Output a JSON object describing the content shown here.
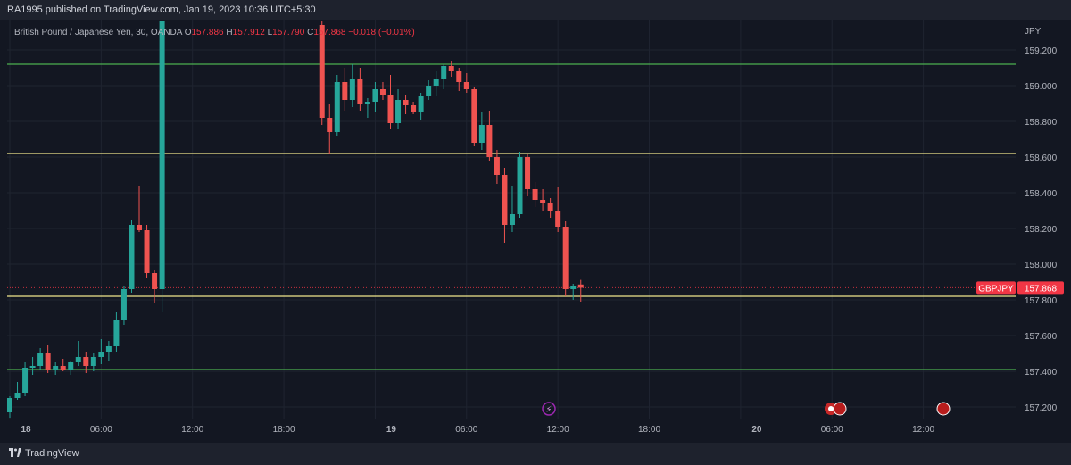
{
  "header": {
    "published": "RA1995 published on TradingView.com, Jan 19, 2023 10:36 UTC+5:30"
  },
  "legend": {
    "symbol": "British Pound / Japanese Yen, 30, OANDA",
    "o_label": "O",
    "o_value": "157.886",
    "h_label": "H",
    "h_value": "157.912",
    "l_label": "L",
    "l_value": "157.790",
    "c_label": "C",
    "c_value": "157.868",
    "change": "−0.018 (−0.01%)"
  },
  "axis": {
    "currency": "JPY",
    "price_ticks": [
      "159.200",
      "159.000",
      "158.800",
      "158.600",
      "158.400",
      "158.200",
      "158.000",
      "157.800",
      "157.600",
      "157.400",
      "157.200"
    ],
    "price_tick_values": [
      159.2,
      159.0,
      158.8,
      158.6,
      158.4,
      158.2,
      158.0,
      157.8,
      157.6,
      157.4,
      157.2
    ],
    "time_ticks": [
      "18",
      "06:00",
      "12:00",
      "18:00",
      "19",
      "06:00",
      "12:00",
      "18:00",
      "20",
      "06:00",
      "12:00"
    ],
    "time_tick_slots": [
      0,
      12,
      24,
      36,
      48,
      60,
      72,
      84,
      96,
      108,
      120
    ],
    "bold_ticks": [
      "18",
      "19",
      "20"
    ]
  },
  "badges": {
    "symbol_tag": "GBPJPY",
    "last_price": "157.868"
  },
  "footer": {
    "brand": "TradingView"
  },
  "colors": {
    "up": "#26a69a",
    "down": "#ef5350",
    "green_line": "#4caf50",
    "yellow_line": "#f0e68c",
    "background": "#131722",
    "badge_red": "#f23645"
  },
  "chart_data": {
    "type": "candlestick",
    "symbol": "GBPJPY",
    "timeframe": "30",
    "ylim": [
      157.13,
      159.37
    ],
    "horizontal_levels": [
      {
        "value": 159.12,
        "color": "green"
      },
      {
        "value": 158.62,
        "color": "yellow"
      },
      {
        "value": 157.82,
        "color": "yellow"
      },
      {
        "value": 157.41,
        "color": "green"
      }
    ],
    "last_price": 157.868,
    "candles": [
      {
        "slot": 0,
        "o": 157.17,
        "h": 157.26,
        "l": 157.14,
        "c": 157.25
      },
      {
        "slot": 1,
        "o": 157.25,
        "h": 157.34,
        "l": 157.24,
        "c": 157.28
      },
      {
        "slot": 2,
        "o": 157.28,
        "h": 157.45,
        "l": 157.26,
        "c": 157.42
      },
      {
        "slot": 3,
        "o": 157.42,
        "h": 157.48,
        "l": 157.38,
        "c": 157.43
      },
      {
        "slot": 4,
        "o": 157.43,
        "h": 157.53,
        "l": 157.41,
        "c": 157.5
      },
      {
        "slot": 5,
        "o": 157.5,
        "h": 157.55,
        "l": 157.39,
        "c": 157.41
      },
      {
        "slot": 6,
        "o": 157.41,
        "h": 157.45,
        "l": 157.38,
        "c": 157.43
      },
      {
        "slot": 7,
        "o": 157.43,
        "h": 157.47,
        "l": 157.4,
        "c": 157.41
      },
      {
        "slot": 8,
        "o": 157.41,
        "h": 157.46,
        "l": 157.38,
        "c": 157.45
      },
      {
        "slot": 9,
        "o": 157.45,
        "h": 157.57,
        "l": 157.43,
        "c": 157.48
      },
      {
        "slot": 10,
        "o": 157.48,
        "h": 157.51,
        "l": 157.39,
        "c": 157.43
      },
      {
        "slot": 11,
        "o": 157.43,
        "h": 157.5,
        "l": 157.4,
        "c": 157.48
      },
      {
        "slot": 12,
        "o": 157.48,
        "h": 157.58,
        "l": 157.44,
        "c": 157.51
      },
      {
        "slot": 13,
        "o": 157.51,
        "h": 157.57,
        "l": 157.46,
        "c": 157.54
      },
      {
        "slot": 14,
        "o": 157.54,
        "h": 157.73,
        "l": 157.51,
        "c": 157.69
      },
      {
        "slot": 15,
        "o": 157.69,
        "h": 157.88,
        "l": 157.66,
        "c": 157.86
      },
      {
        "slot": 16,
        "o": 157.86,
        "h": 158.25,
        "l": 157.84,
        "c": 158.22
      },
      {
        "slot": 17,
        "o": 158.22,
        "h": 158.44,
        "l": 158.18,
        "c": 158.19
      },
      {
        "slot": 18,
        "o": 158.19,
        "h": 158.22,
        "l": 157.92,
        "c": 157.95
      },
      {
        "slot": 19,
        "o": 157.95,
        "h": 157.97,
        "l": 157.78,
        "c": 157.86
      },
      {
        "slot": 20,
        "o": 157.86,
        "h": 159.36,
        "l": 157.73,
        "c": 159.36
      },
      {
        "slot": 41,
        "o": 159.34,
        "h": 159.36,
        "l": 158.78,
        "c": 158.82
      },
      {
        "slot": 42,
        "o": 158.82,
        "h": 158.9,
        "l": 158.62,
        "c": 158.74
      },
      {
        "slot": 43,
        "o": 158.74,
        "h": 159.06,
        "l": 158.72,
        "c": 159.02
      },
      {
        "slot": 44,
        "o": 159.02,
        "h": 159.1,
        "l": 158.86,
        "c": 158.92
      },
      {
        "slot": 45,
        "o": 158.92,
        "h": 159.12,
        "l": 158.88,
        "c": 159.04
      },
      {
        "slot": 46,
        "o": 159.04,
        "h": 159.1,
        "l": 158.86,
        "c": 158.9
      },
      {
        "slot": 47,
        "o": 158.9,
        "h": 158.93,
        "l": 158.82,
        "c": 158.91
      },
      {
        "slot": 48,
        "o": 158.91,
        "h": 159.02,
        "l": 158.85,
        "c": 158.98
      },
      {
        "slot": 49,
        "o": 158.98,
        "h": 159.02,
        "l": 158.92,
        "c": 158.95
      },
      {
        "slot": 50,
        "o": 158.95,
        "h": 159.06,
        "l": 158.76,
        "c": 158.79
      },
      {
        "slot": 51,
        "o": 158.79,
        "h": 158.98,
        "l": 158.76,
        "c": 158.92
      },
      {
        "slot": 52,
        "o": 158.92,
        "h": 158.95,
        "l": 158.84,
        "c": 158.89
      },
      {
        "slot": 53,
        "o": 158.89,
        "h": 158.91,
        "l": 158.84,
        "c": 158.85
      },
      {
        "slot": 54,
        "o": 158.85,
        "h": 158.96,
        "l": 158.81,
        "c": 158.94
      },
      {
        "slot": 55,
        "o": 158.94,
        "h": 159.03,
        "l": 158.92,
        "c": 159.0
      },
      {
        "slot": 56,
        "o": 159.0,
        "h": 159.08,
        "l": 158.94,
        "c": 159.04
      },
      {
        "slot": 57,
        "o": 159.04,
        "h": 159.12,
        "l": 158.98,
        "c": 159.11
      },
      {
        "slot": 58,
        "o": 159.11,
        "h": 159.14,
        "l": 159.05,
        "c": 159.08
      },
      {
        "slot": 59,
        "o": 159.08,
        "h": 159.1,
        "l": 158.97,
        "c": 159.02
      },
      {
        "slot": 60,
        "o": 159.02,
        "h": 159.07,
        "l": 158.96,
        "c": 158.98
      },
      {
        "slot": 61,
        "o": 158.98,
        "h": 158.99,
        "l": 158.66,
        "c": 158.68
      },
      {
        "slot": 62,
        "o": 158.68,
        "h": 158.85,
        "l": 158.64,
        "c": 158.78
      },
      {
        "slot": 63,
        "o": 158.78,
        "h": 158.86,
        "l": 158.58,
        "c": 158.6
      },
      {
        "slot": 64,
        "o": 158.6,
        "h": 158.64,
        "l": 158.45,
        "c": 158.5
      },
      {
        "slot": 65,
        "o": 158.5,
        "h": 158.54,
        "l": 158.12,
        "c": 158.22
      },
      {
        "slot": 66,
        "o": 158.22,
        "h": 158.44,
        "l": 158.18,
        "c": 158.28
      },
      {
        "slot": 67,
        "o": 158.28,
        "h": 158.63,
        "l": 158.26,
        "c": 158.6
      },
      {
        "slot": 68,
        "o": 158.6,
        "h": 158.62,
        "l": 158.38,
        "c": 158.42
      },
      {
        "slot": 69,
        "o": 158.42,
        "h": 158.46,
        "l": 158.32,
        "c": 158.36
      },
      {
        "slot": 70,
        "o": 158.36,
        "h": 158.42,
        "l": 158.3,
        "c": 158.34
      },
      {
        "slot": 71,
        "o": 158.34,
        "h": 158.37,
        "l": 158.26,
        "c": 158.3
      },
      {
        "slot": 72,
        "o": 158.3,
        "h": 158.43,
        "l": 158.18,
        "c": 158.21
      },
      {
        "slot": 73,
        "o": 158.21,
        "h": 158.24,
        "l": 157.82,
        "c": 157.86
      },
      {
        "slot": 74,
        "o": 157.86,
        "h": 157.89,
        "l": 157.8,
        "c": 157.88
      },
      {
        "slot": 75,
        "o": 157.886,
        "h": 157.912,
        "l": 157.79,
        "c": 157.868
      }
    ],
    "slots_visible": [
      0,
      132
    ]
  }
}
